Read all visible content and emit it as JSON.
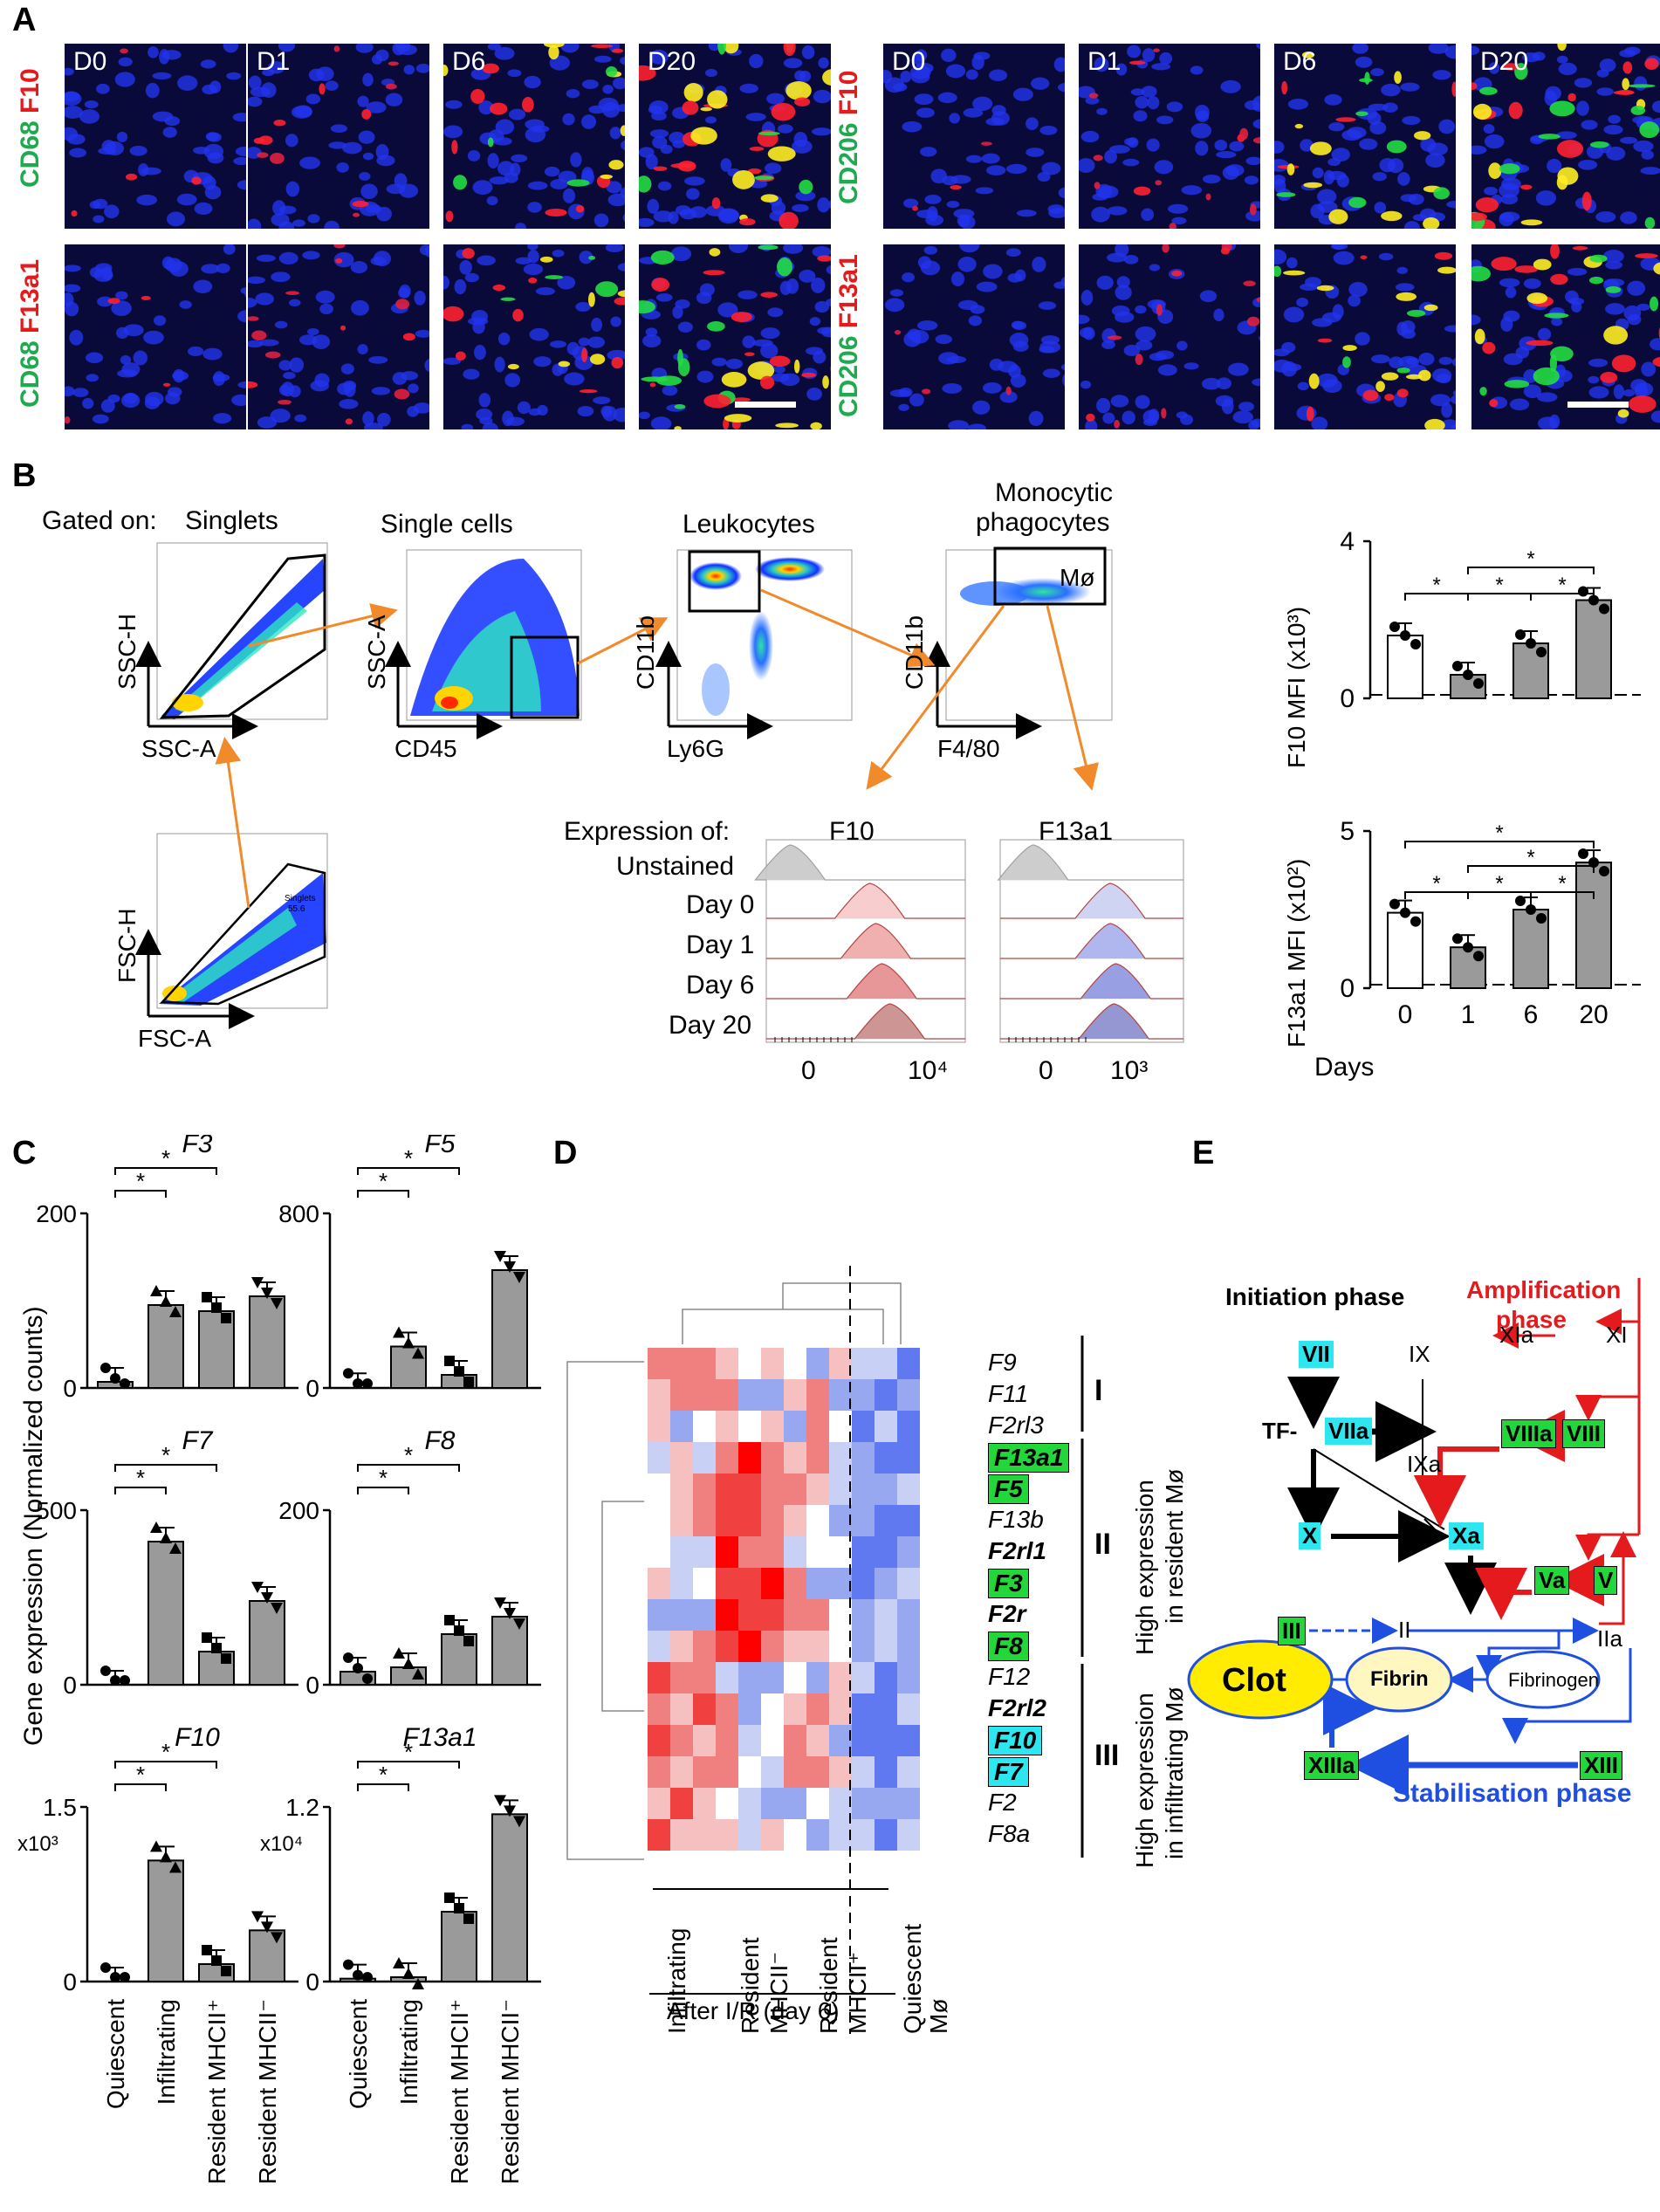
{
  "panels": {
    "A": "A",
    "B": "B",
    "C": "C",
    "D": "D",
    "E": "E"
  },
  "panelA": {
    "left_marker_top_green": "CD68",
    "left_marker_top_red": "F10",
    "left_marker_bot_green": "CD68",
    "left_marker_bot_red": "F13a1",
    "right_marker_top_green": "CD206",
    "right_marker_top_red": "F10",
    "right_marker_bot_green": "CD206",
    "right_marker_bot_red": "F13a1",
    "days": [
      "D0",
      "D1",
      "D6",
      "D20"
    ]
  },
  "panelB": {
    "gated_on": "Gated on:",
    "gates": [
      "Singlets",
      "Single cells",
      "Leukocytes",
      "Monocytic",
      "phagocytes"
    ],
    "axes": {
      "ssc_h": "SSC-H",
      "ssc_a": "SSC-A",
      "ssc_a2": "SSC-A",
      "cd45": "CD45",
      "cd11b": "CD11b",
      "ly6g": "Ly6G",
      "cd11b2": "CD11b",
      "f480": "F4/80",
      "fsc_h": "FSC-H",
      "fsc_a": "FSC-A",
      "mo": "Mø",
      "singlets_gate": "Singlets",
      "singlets_pct": "55.6"
    },
    "expression_of": "Expression of:",
    "hist_titles": [
      "F10",
      "F13a1"
    ],
    "hist_rows": [
      "Unstained",
      "Day 0",
      "Day 1",
      "Day 6",
      "Day 20"
    ],
    "f10_ticks": [
      "0",
      "10⁴"
    ],
    "f13_ticks": [
      "0",
      "10³"
    ]
  },
  "chart_data": [
    {
      "type": "bar",
      "title": "F10 MFI (x10³)",
      "ylabel": "F10 MFI (x10³)",
      "categories": [
        "0",
        "1",
        "6",
        "20"
      ],
      "values": [
        1.6,
        0.6,
        1.4,
        2.5
      ],
      "ylim": [
        0,
        4
      ],
      "yticks": [
        "4",
        "0"
      ],
      "significance": "*"
    },
    {
      "type": "bar",
      "title": "F13a1 MFI (x10²)",
      "ylabel": "F13a1 MFI (x10²)",
      "xlabel": "Days",
      "categories": [
        "0",
        "1",
        "6",
        "20"
      ],
      "values": [
        2.4,
        1.3,
        2.5,
        4.0
      ],
      "ylim": [
        0,
        5
      ],
      "yticks": [
        "5",
        "0"
      ]
    },
    {
      "type": "bar",
      "title": "F3",
      "categories": [
        "Quiescent",
        "Infiltrating",
        "Resident MHCII⁺",
        "Resident MHCII⁻"
      ],
      "values": [
        7,
        95,
        88,
        105
      ],
      "ylim": [
        0,
        200
      ],
      "yticks": [
        "200",
        "0"
      ]
    },
    {
      "type": "bar",
      "title": "F5",
      "categories": [
        "Quiescent",
        "Infiltrating",
        "Resident MHCII⁺",
        "Resident MHCII⁻"
      ],
      "values": [
        3,
        190,
        60,
        540
      ],
      "ylim": [
        0,
        800
      ],
      "yticks": [
        "800",
        "0"
      ]
    },
    {
      "type": "bar",
      "title": "F7",
      "categories": [
        "Quiescent",
        "Infiltrating",
        "Resident MHCII⁺",
        "Resident MHCII⁻"
      ],
      "values": [
        0,
        410,
        95,
        240
      ],
      "ylim": [
        0,
        500
      ],
      "yticks": [
        "500",
        "0"
      ]
    },
    {
      "type": "bar",
      "title": "F8",
      "categories": [
        "Quiescent",
        "Infiltrating",
        "Resident MHCII⁺",
        "Resident MHCII⁻"
      ],
      "values": [
        15,
        20,
        58,
        78
      ],
      "ylim": [
        0,
        200
      ],
      "yticks": [
        "200",
        "0"
      ]
    },
    {
      "type": "bar",
      "title": "F10",
      "ylabel_multiplier": "x10³",
      "categories": [
        "Quiescent",
        "Infiltrating",
        "Resident MHCII⁺",
        "Resident MHCII⁻"
      ],
      "values": [
        0,
        1.04,
        0.15,
        0.44
      ],
      "ylim": [
        0,
        1.5
      ],
      "yticks": [
        "1.5",
        "0"
      ]
    },
    {
      "type": "bar",
      "title": "F13a1",
      "ylabel_multiplier": "x10⁴",
      "categories": [
        "Quiescent",
        "Infiltrating",
        "Resident MHCII⁺",
        "Resident MHCII⁻"
      ],
      "values": [
        0.02,
        0.03,
        0.48,
        1.15
      ],
      "ylim": [
        0,
        1.2
      ],
      "yticks": [
        "1.2",
        "0"
      ]
    },
    {
      "type": "heatmap",
      "title": "Heatmap of coagulation genes",
      "rows": [
        "F9",
        "F11",
        "F2rl3",
        "F13a1",
        "F5",
        "F13b",
        "F2rl1",
        "F3",
        "F2r",
        "F8",
        "F12",
        "F2rl2",
        "F10",
        "F7",
        "F2",
        "F8a"
      ],
      "columns": [
        "Infiltrating",
        "Infiltrating",
        "Infiltrating",
        "Resident MHCII⁻",
        "Resident MHCII⁻",
        "Resident MHCII⁻",
        "Resident MHCII⁺",
        "Resident MHCII⁺",
        "Resident MHCII⁺",
        "Quiescent Mø",
        "Quiescent Mø",
        "Quiescent Mø"
      ]
    }
  ],
  "panelC": {
    "ylabel": "Gene expression (Normalized counts)",
    "genes": [
      "F3",
      "F5",
      "F7",
      "F8",
      "F10",
      "F13a1"
    ],
    "categories": [
      "Quiescent",
      "Infiltrating",
      "Resident MHCII⁺",
      "Resident MHCII⁻"
    ],
    "star": "*"
  },
  "panelD": {
    "genes": [
      "F9",
      "F11",
      "F2rl3",
      "F13a1",
      "F5",
      "F13b",
      "F2rl1",
      "F3",
      "F2r",
      "F8",
      "F12",
      "F2rl2",
      "F10",
      "F7",
      "F2",
      "F8a"
    ],
    "groups": [
      "I",
      "II",
      "III"
    ],
    "group_labels": [
      "High expression",
      "in resident Mø",
      "High expression",
      "in infiltrating Mø"
    ],
    "col_labels": [
      "Infiltrating",
      "Resident",
      "MHCII⁻",
      "Resident",
      "MHCII⁺",
      "Quiescent",
      "Mø"
    ],
    "after": "After I/R (day 6)"
  },
  "panelE": {
    "initiation": "Initiation phase",
    "amplification": [
      "Amplification",
      "phase"
    ],
    "stabilisation": "Stabilisation phase",
    "factors": [
      "VII",
      "IX",
      "XIa",
      "XI",
      "TF-",
      "VIIa",
      "IXa",
      "VIIIa",
      "VIII",
      "X",
      "Xa",
      "Va",
      "V",
      "III",
      "II",
      "IIa",
      "Clot",
      "Fibrin",
      "Fibrinogen",
      "XIIIa",
      "XIII"
    ]
  },
  "colors": {
    "green": "#1faa4f",
    "red": "#e41a1c",
    "cyan": "#2ee6f0",
    "lime": "#23d63a",
    "blue": "#1f4fe0"
  }
}
